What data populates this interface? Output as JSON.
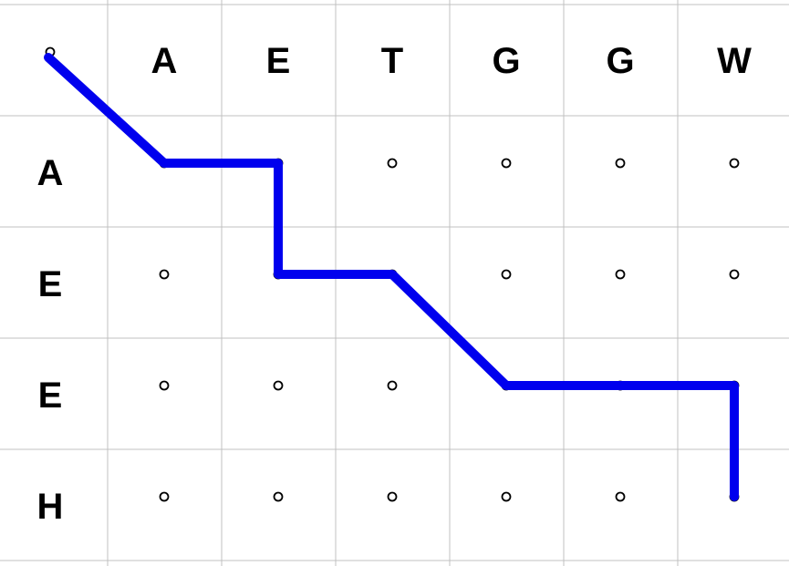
{
  "alignment_grid": {
    "top_sequence": [
      "A",
      "E",
      "T",
      "G",
      "G",
      "W"
    ],
    "left_sequence": [
      "A",
      "E",
      "E",
      "H"
    ],
    "path": [
      [
        0,
        0
      ],
      [
        1,
        1
      ],
      [
        1,
        2
      ],
      [
        2,
        2
      ],
      [
        2,
        3
      ],
      [
        3,
        4
      ],
      [
        3,
        5
      ],
      [
        3,
        6
      ],
      [
        4,
        6
      ]
    ],
    "colors": {
      "path": "#0000ee",
      "grid_lines": "#c0c0c0",
      "node_stroke": "#000000",
      "letters": "#000000"
    }
  }
}
